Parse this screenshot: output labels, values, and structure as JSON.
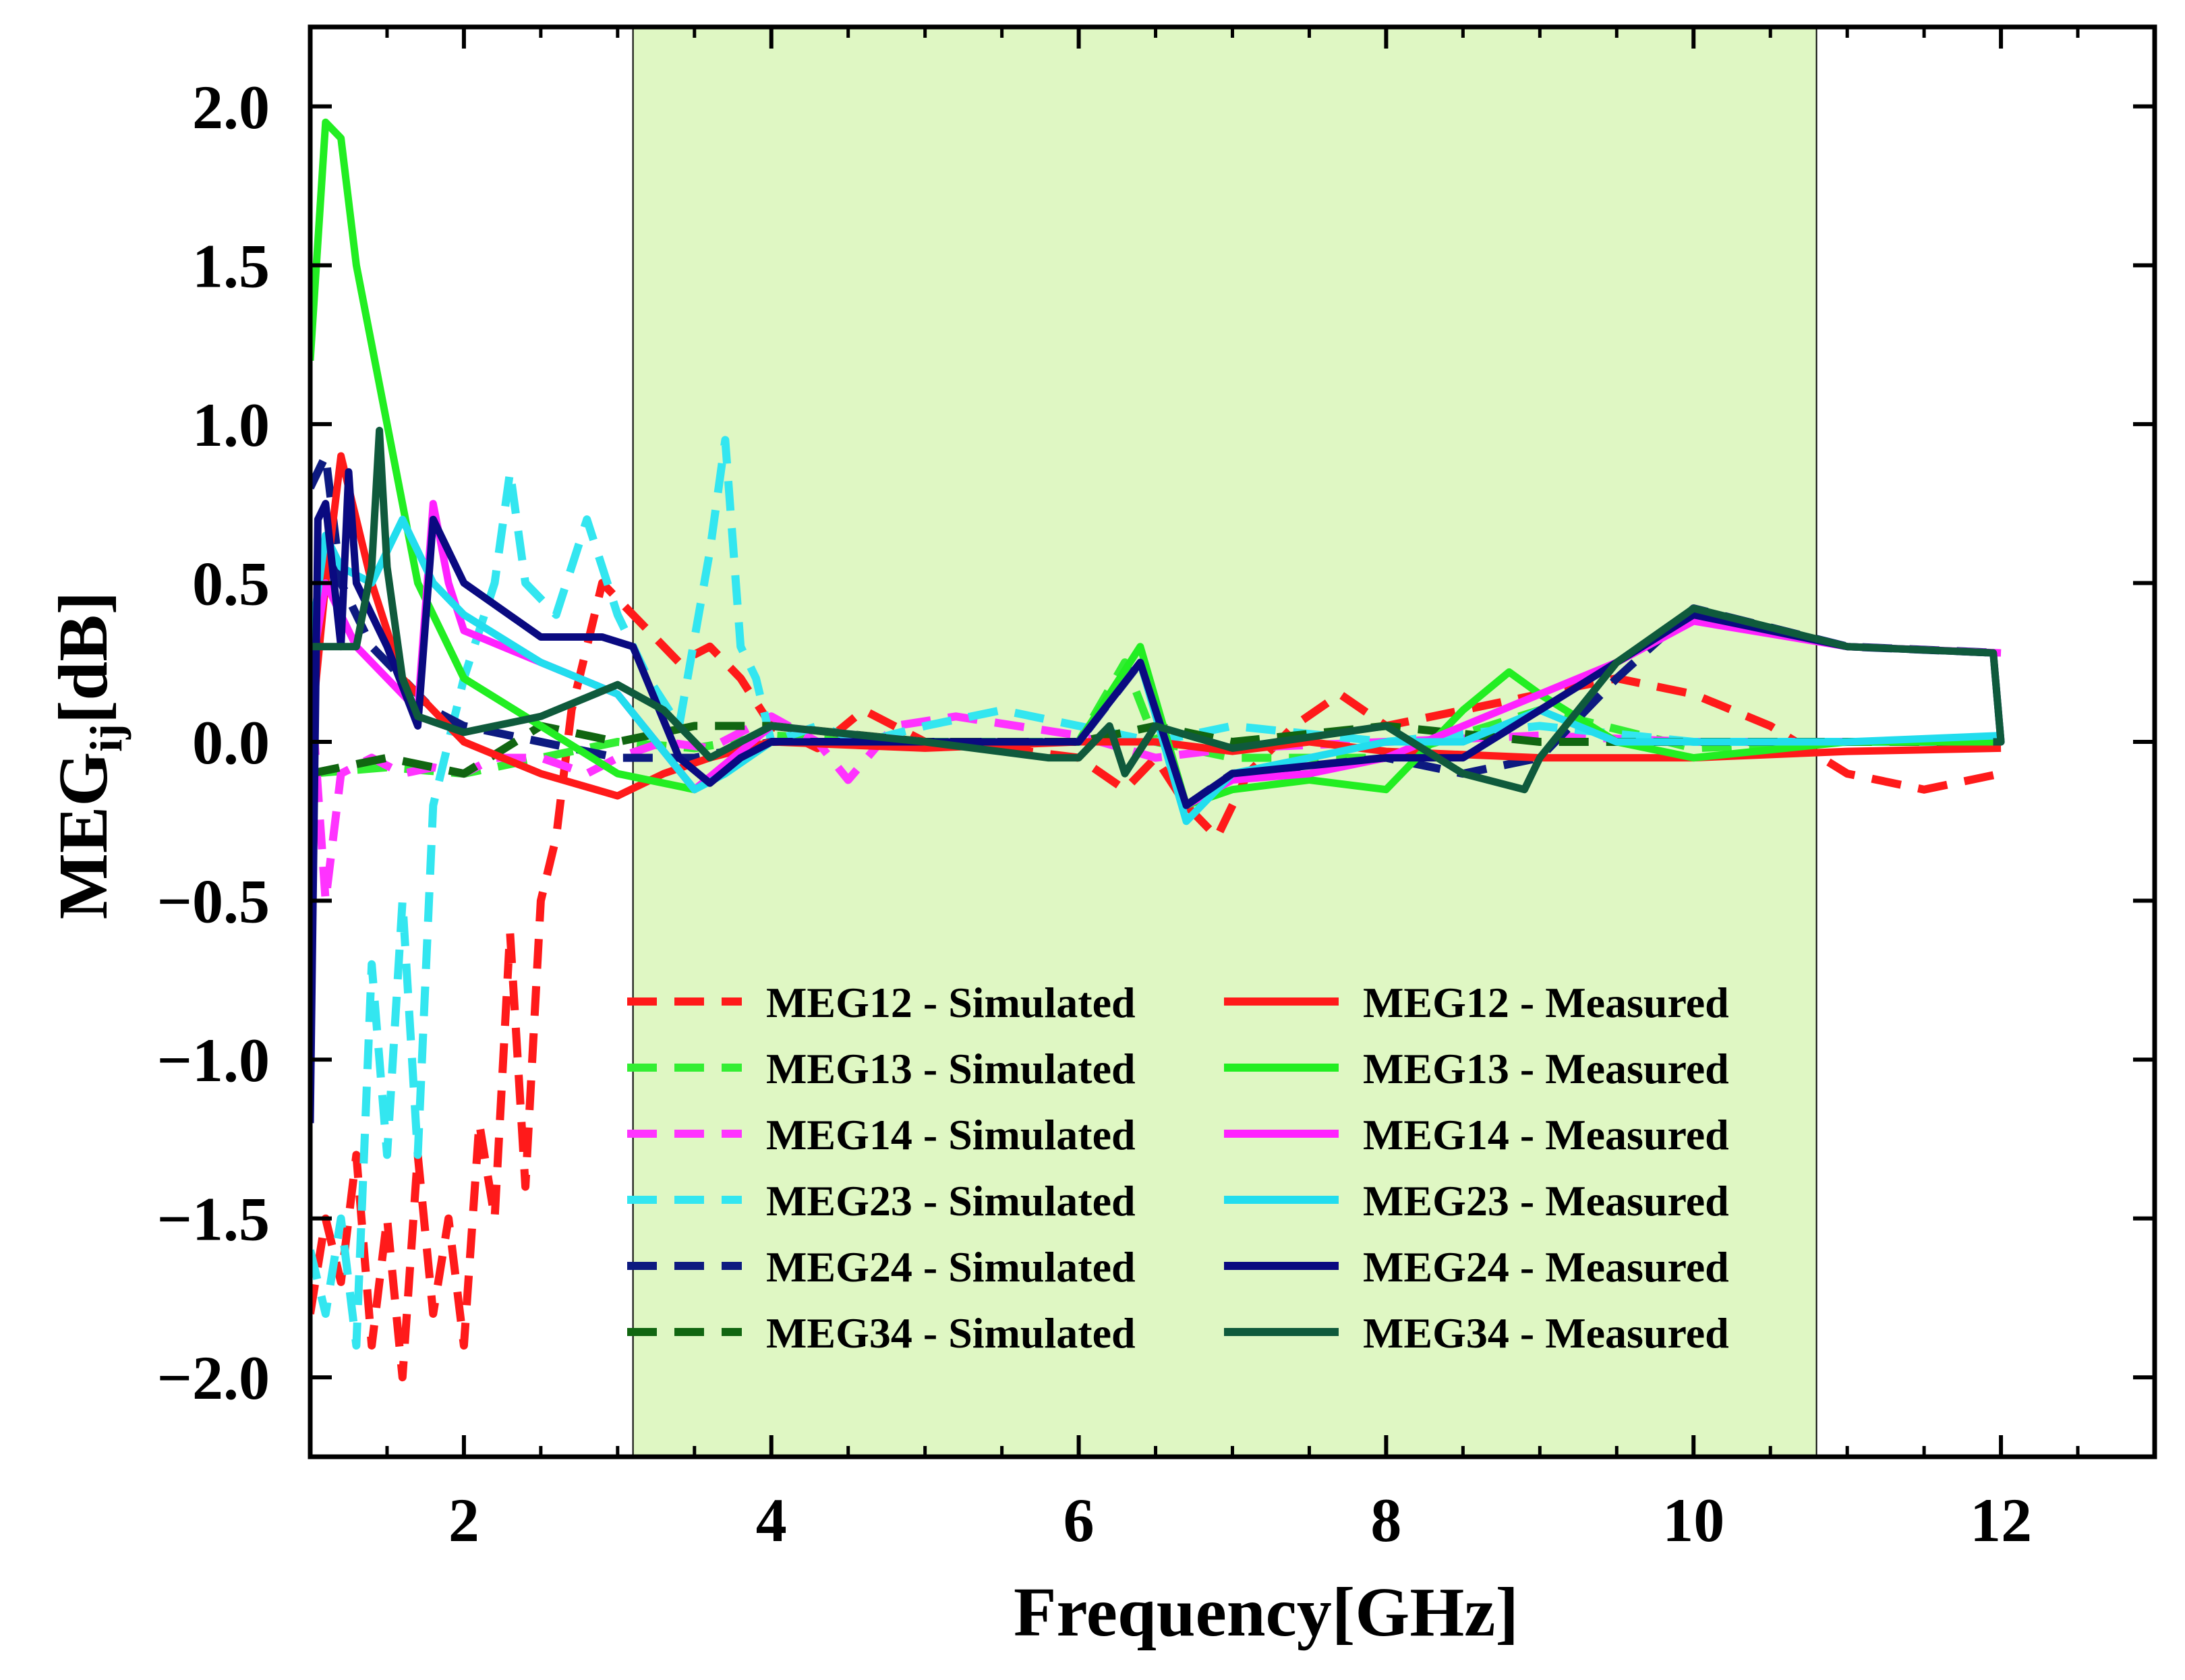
{
  "chart_data": {
    "type": "line",
    "title": "",
    "xlabel": "Frequency[GHz]",
    "ylabel": "MEG",
    "ylabel_subscript": "ij",
    "ylabel_unit": "[dB]",
    "xlim": [
      1,
      13
    ],
    "ylim": [
      -2.25,
      2.25
    ],
    "xticks": [
      2,
      4,
      6,
      8,
      10,
      12
    ],
    "xtick_labels": [
      "2",
      "4",
      "6",
      "8",
      "10",
      "12"
    ],
    "yticks": [
      -2.0,
      -1.5,
      -1.0,
      -0.5,
      0.0,
      0.5,
      1.0,
      1.5,
      2.0
    ],
    "ytick_labels": [
      "−2.0",
      "−1.5",
      "−1.0",
      "−0.5",
      "0.0",
      "0.5",
      "1.0",
      "1.5",
      "2.0"
    ],
    "highlight_band": {
      "x_start": 3.1,
      "x_end": 10.8,
      "color": "#dff7c3"
    },
    "legend_position": "lower-right",
    "series": [
      {
        "name": "MEG12 - Simulated",
        "color": "#ff1a1a",
        "dash": true,
        "x": [
          1.0,
          1.1,
          1.2,
          1.3,
          1.4,
          1.5,
          1.6,
          1.7,
          1.8,
          1.9,
          2.0,
          2.1,
          2.2,
          2.3,
          2.4,
          2.5,
          2.6,
          2.7,
          2.8,
          2.9,
          3.0,
          3.2,
          3.4,
          3.6,
          3.8,
          4.0,
          4.3,
          4.6,
          5.0,
          5.5,
          6.0,
          6.3,
          6.5,
          6.7,
          6.9,
          7.1,
          7.4,
          7.7,
          8.0,
          8.5,
          9.0,
          9.5,
          10.0,
          10.5,
          11.0,
          11.5,
          12.0
        ],
        "y": [
          -1.8,
          -1.5,
          -1.7,
          -1.3,
          -1.9,
          -1.5,
          -2.0,
          -1.3,
          -1.8,
          -1.5,
          -1.9,
          -1.2,
          -1.5,
          -0.6,
          -1.4,
          -0.5,
          -0.3,
          0.1,
          0.3,
          0.5,
          0.45,
          0.35,
          0.25,
          0.3,
          0.2,
          0.05,
          -0.02,
          0.1,
          0.0,
          -0.02,
          -0.05,
          -0.15,
          -0.05,
          -0.2,
          -0.3,
          -0.1,
          0.05,
          0.15,
          0.05,
          0.1,
          0.15,
          0.2,
          0.15,
          0.05,
          -0.1,
          -0.15,
          -0.1
        ]
      },
      {
        "name": "MEG13 - Simulated",
        "color": "#33ee33",
        "dash": true,
        "x": [
          1.0,
          1.5,
          2.0,
          2.5,
          3.0,
          3.5,
          4.0,
          5.0,
          6.0,
          6.3,
          6.5,
          7.0,
          8.0,
          9.0,
          10.0,
          11.0,
          12.0
        ],
        "y": [
          -0.1,
          -0.08,
          -0.1,
          -0.05,
          0.0,
          -0.02,
          0.02,
          0.0,
          0.0,
          0.25,
          0.0,
          -0.05,
          -0.05,
          0.1,
          -0.02,
          0.0,
          0.0
        ]
      },
      {
        "name": "MEG14 - Simulated",
        "color": "#ff33ff",
        "dash": true,
        "x": [
          1.0,
          1.1,
          1.2,
          1.4,
          1.6,
          1.8,
          2.0,
          2.2,
          2.5,
          2.8,
          3.0,
          3.3,
          3.6,
          4.0,
          4.3,
          4.5,
          4.8,
          5.2,
          6.0,
          6.5,
          7.0,
          8.0,
          9.0,
          10.0,
          11.0,
          12.0
        ],
        "y": [
          0.2,
          -0.5,
          -0.1,
          -0.05,
          -0.1,
          -0.08,
          -0.1,
          -0.05,
          -0.05,
          -0.1,
          -0.05,
          0.0,
          -0.02,
          0.08,
          0.0,
          -0.12,
          0.05,
          0.08,
          0.02,
          -0.05,
          -0.02,
          0.0,
          0.02,
          0.0,
          0.0,
          0.0
        ]
      },
      {
        "name": "MEG23 - Simulated",
        "color": "#33e6f0",
        "dash": true,
        "x": [
          1.0,
          1.1,
          1.2,
          1.3,
          1.4,
          1.5,
          1.6,
          1.7,
          1.8,
          2.0,
          2.2,
          2.3,
          2.4,
          2.6,
          2.8,
          3.0,
          3.2,
          3.4,
          3.6,
          3.7,
          3.8,
          3.9,
          4.0,
          4.3,
          4.6,
          5.0,
          5.5,
          6.0,
          6.5,
          7.0,
          8.0,
          9.0,
          10.0,
          11.0,
          12.0
        ],
        "y": [
          -1.6,
          -1.8,
          -1.5,
          -1.9,
          -0.7,
          -1.3,
          -0.5,
          -1.3,
          -0.2,
          0.2,
          0.5,
          0.85,
          0.5,
          0.4,
          0.7,
          0.4,
          0.2,
          0.05,
          0.6,
          0.95,
          0.3,
          0.2,
          0.0,
          0.05,
          0.0,
          0.05,
          0.1,
          0.05,
          0.0,
          0.05,
          0.0,
          0.05,
          0.0,
          0.0,
          0.0
        ]
      },
      {
        "name": "MEG24 - Simulated",
        "color": "#0d1a80",
        "dash": true,
        "x": [
          1.0,
          1.1,
          1.2,
          1.4,
          1.6,
          1.8,
          2.0,
          2.5,
          3.0,
          3.5,
          4.0,
          5.0,
          6.0,
          6.4,
          6.7,
          7.0,
          8.0,
          8.5,
          9.0,
          9.5,
          10.0,
          11.0,
          12.0
        ],
        "y": [
          0.8,
          0.9,
          0.5,
          0.3,
          0.2,
          0.1,
          0.05,
          0.0,
          -0.05,
          -0.05,
          0.0,
          0.0,
          0.0,
          0.25,
          -0.2,
          -0.1,
          -0.05,
          -0.1,
          -0.05,
          0.2,
          0.42,
          0.3,
          0.28
        ]
      },
      {
        "name": "MEG34 - Simulated",
        "color": "#116611",
        "dash": true,
        "x": [
          1.0,
          1.5,
          2.0,
          2.5,
          3.0,
          3.5,
          4.0,
          5.0,
          6.0,
          6.5,
          7.0,
          8.0,
          9.0,
          10.0,
          11.0,
          12.0
        ],
        "y": [
          -0.1,
          -0.05,
          -0.1,
          0.05,
          0.0,
          0.05,
          0.05,
          0.0,
          0.0,
          0.05,
          0.0,
          0.05,
          0.0,
          0.0,
          0.0,
          0.0
        ]
      },
      {
        "name": "MEG12 - Measured",
        "color": "#ff1a1a",
        "dash": false,
        "x": [
          1.0,
          1.1,
          1.2,
          1.4,
          1.6,
          1.8,
          2.0,
          2.5,
          3.0,
          3.3,
          3.6,
          4.0,
          5.0,
          6.0,
          6.5,
          7.0,
          7.5,
          8.0,
          9.0,
          9.5,
          10.0,
          11.0,
          12.0
        ],
        "y": [
          0.0,
          0.5,
          0.9,
          0.5,
          0.2,
          0.1,
          0.0,
          -0.1,
          -0.17,
          -0.1,
          -0.05,
          0.0,
          -0.02,
          0.0,
          0.0,
          -0.03,
          0.0,
          -0.03,
          -0.05,
          -0.05,
          -0.05,
          -0.03,
          -0.02
        ]
      },
      {
        "name": "MEG13 - Measured",
        "color": "#22ee22",
        "dash": false,
        "x": [
          1.0,
          1.1,
          1.2,
          1.3,
          1.5,
          1.7,
          2.0,
          2.5,
          3.0,
          3.5,
          4.0,
          5.0,
          6.0,
          6.4,
          6.7,
          7.0,
          7.5,
          8.0,
          8.5,
          8.8,
          9.0,
          9.5,
          10.0,
          11.0,
          12.0
        ],
        "y": [
          1.2,
          1.95,
          1.9,
          1.5,
          1.0,
          0.5,
          0.2,
          0.05,
          -0.1,
          -0.15,
          0.0,
          0.0,
          0.0,
          0.3,
          -0.2,
          -0.15,
          -0.12,
          -0.15,
          0.1,
          0.22,
          0.15,
          0.0,
          -0.05,
          0.0,
          0.0
        ]
      },
      {
        "name": "MEG14 - Measured",
        "color": "#ff22ff",
        "dash": false,
        "x": [
          1.0,
          1.1,
          1.2,
          1.3,
          1.5,
          1.7,
          1.8,
          1.9,
          2.0,
          2.5,
          3.0,
          3.5,
          4.0,
          5.0,
          6.0,
          6.4,
          6.7,
          7.0,
          7.5,
          8.0,
          8.5,
          9.0,
          9.5,
          10.0,
          11.0,
          12.0
        ],
        "y": [
          0.2,
          0.5,
          0.4,
          0.3,
          0.2,
          0.1,
          0.75,
          0.5,
          0.35,
          0.25,
          0.15,
          -0.15,
          0.05,
          0.0,
          0.0,
          0.25,
          -0.2,
          -0.12,
          -0.1,
          -0.05,
          0.05,
          0.15,
          0.25,
          0.38,
          0.3,
          0.28
        ]
      },
      {
        "name": "MEG23 - Measured",
        "color": "#22ddee",
        "dash": false,
        "x": [
          1.0,
          1.1,
          1.2,
          1.4,
          1.6,
          1.8,
          2.0,
          2.5,
          3.0,
          3.5,
          3.7,
          4.0,
          5.0,
          6.0,
          6.4,
          6.7,
          7.0,
          7.5,
          8.0,
          8.5,
          9.0,
          9.5,
          10.0,
          11.0,
          12.0
        ],
        "y": [
          0.3,
          0.65,
          0.55,
          0.5,
          0.7,
          0.5,
          0.4,
          0.25,
          0.15,
          -0.15,
          -0.1,
          0.0,
          0.0,
          0.0,
          0.25,
          -0.25,
          -0.1,
          -0.05,
          0.0,
          0.0,
          0.1,
          0.0,
          0.0,
          0.0,
          0.02
        ]
      },
      {
        "name": "MEG24 - Measured",
        "color": "#0a0a80",
        "dash": false,
        "x": [
          1.0,
          1.05,
          1.1,
          1.2,
          1.25,
          1.3,
          1.5,
          1.7,
          1.8,
          2.0,
          2.5,
          2.9,
          3.1,
          3.4,
          3.6,
          3.8,
          4.0,
          5.0,
          6.0,
          6.4,
          6.7,
          7.0,
          8.0,
          8.5,
          9.0,
          9.5,
          10.0,
          11.0,
          11.95,
          12.0,
          11.95
        ],
        "y": [
          -1.2,
          0.7,
          0.75,
          0.3,
          0.85,
          0.5,
          0.3,
          0.05,
          0.7,
          0.5,
          0.33,
          0.33,
          0.3,
          -0.05,
          -0.13,
          -0.05,
          0.0,
          0.0,
          0.0,
          0.25,
          -0.2,
          -0.1,
          -0.05,
          -0.05,
          0.1,
          0.25,
          0.4,
          0.3,
          0.28,
          0.0,
          0.0
        ]
      },
      {
        "name": "MEG34 - Measured",
        "color": "#0f5a3c",
        "dash": false,
        "x": [
          1.0,
          1.3,
          1.4,
          1.45,
          1.5,
          1.6,
          1.7,
          2.0,
          2.5,
          3.0,
          3.3,
          3.6,
          4.0,
          5.0,
          5.8,
          6.0,
          6.2,
          6.3,
          6.5,
          7.0,
          8.0,
          8.5,
          8.9,
          9.0,
          9.5,
          10.0,
          11.0,
          11.95,
          12.0,
          11.95
        ],
        "y": [
          0.3,
          0.3,
          0.55,
          0.98,
          0.55,
          0.2,
          0.08,
          0.03,
          0.08,
          0.18,
          0.1,
          -0.05,
          0.05,
          0.0,
          -0.05,
          -0.05,
          0.05,
          -0.1,
          0.05,
          -0.02,
          0.05,
          -0.1,
          -0.15,
          -0.05,
          0.25,
          0.42,
          0.3,
          0.28,
          0.0,
          0.0
        ]
      }
    ]
  }
}
